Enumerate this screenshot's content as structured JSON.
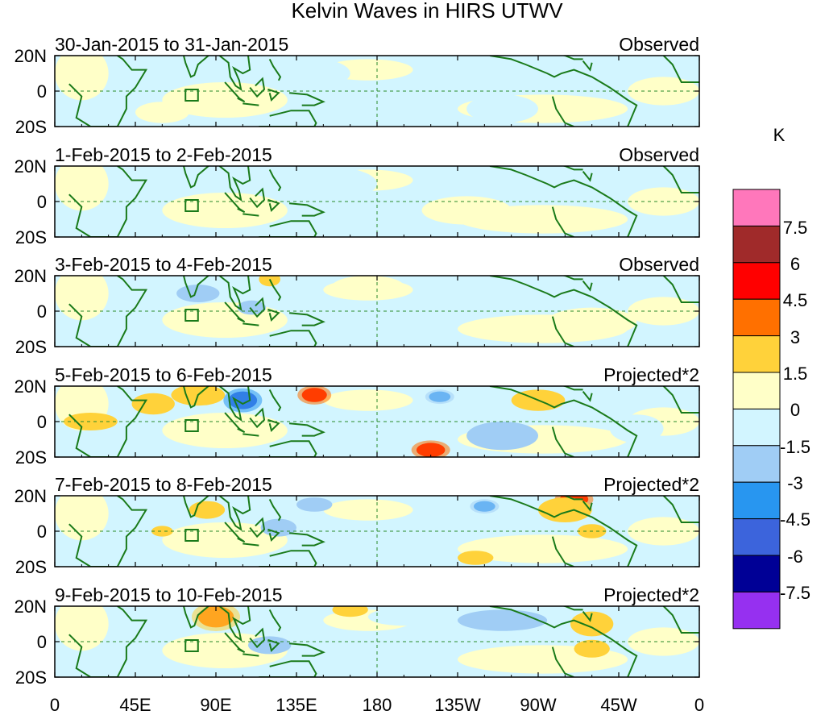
{
  "chart_data": {
    "type": "heatmap",
    "title": "Kelvin Waves in HIRS UTWV",
    "lat_ticks": [
      "20N",
      "0",
      "20S"
    ],
    "lon_ticks": [
      "0",
      "45E",
      "90E",
      "135E",
      "180",
      "135W",
      "90W",
      "45W",
      "0"
    ],
    "lon_values": [
      0,
      45,
      90,
      135,
      180,
      225,
      270,
      315,
      360
    ],
    "lat_range": [
      -20,
      20
    ],
    "lon_range": [
      0,
      360
    ],
    "colorbar": {
      "unit": "K",
      "labels": [
        "7.5",
        "6",
        "4.5",
        "3",
        "1.5",
        "0",
        "-1.5",
        "-3",
        "-4.5",
        "-6",
        "-7.5"
      ],
      "colors": [
        "#ff77bb",
        "#a02a2a",
        "#ff0000",
        "#ff7000",
        "#ffd23a",
        "#ffffc8",
        "#d2f5ff",
        "#a0cdf5",
        "#2896f0",
        "#3c64dc",
        "#000096",
        "#9630f0"
      ]
    },
    "panels": [
      {
        "date": "30-Jan-2015 to 31-Jan-2015",
        "label": "Observed",
        "blobs": [
          [
            140,
            10,
            25,
            9,
            -1.5
          ],
          [
            250,
            -10,
            20,
            8,
            -1.5
          ],
          [
            60,
            -12,
            15,
            6,
            0.5
          ]
        ]
      },
      {
        "date": "1-Feb-2015 to 2-Feb-2015",
        "label": "Observed",
        "blobs": [
          [
            150,
            10,
            30,
            10,
            -1.5
          ],
          [
            230,
            -5,
            25,
            8,
            0.5
          ],
          [
            100,
            -8,
            15,
            5,
            0.5
          ]
        ]
      },
      {
        "date": "3-Feb-2015 to 4-Feb-2015",
        "label": "Observed",
        "blobs": [
          [
            120,
            18,
            6,
            4,
            2.5
          ],
          [
            80,
            10,
            12,
            5,
            -2
          ],
          [
            110,
            2,
            8,
            4,
            -2
          ],
          [
            175,
            14,
            20,
            6,
            0.8
          ],
          [
            300,
            -6,
            25,
            8,
            0.5
          ]
        ]
      },
      {
        "date": "5-Feb-2015 to 6-Feb-2015",
        "label": "Projected*2",
        "blobs": [
          [
            145,
            15,
            7,
            4,
            5.5
          ],
          [
            105,
            12,
            8,
            5,
            -5
          ],
          [
            215,
            14,
            6,
            3,
            -4
          ],
          [
            210,
            -16,
            8,
            4,
            5
          ],
          [
            55,
            10,
            12,
            6,
            2
          ],
          [
            80,
            15,
            15,
            6,
            2.5
          ],
          [
            270,
            12,
            15,
            6,
            2
          ],
          [
            250,
            -8,
            20,
            8,
            -2
          ],
          [
            160,
            -5,
            20,
            6,
            -1.5
          ],
          [
            20,
            0,
            15,
            5,
            2
          ],
          [
            325,
            -4,
            15,
            8,
            -1.5
          ]
        ]
      },
      {
        "date": "7-Feb-2015 to 8-Feb-2015",
        "label": "Projected*2",
        "blobs": [
          [
            290,
            18,
            8,
            4,
            5.5
          ],
          [
            285,
            12,
            15,
            7,
            2.5
          ],
          [
            240,
            14,
            6,
            3,
            -4
          ],
          [
            85,
            12,
            10,
            5,
            2.5
          ],
          [
            60,
            0,
            6,
            3,
            2
          ],
          [
            300,
            0,
            8,
            4,
            2
          ],
          [
            125,
            2,
            10,
            5,
            -2
          ],
          [
            145,
            15,
            10,
            4,
            -2
          ],
          [
            235,
            -15,
            10,
            4,
            1.5
          ]
        ]
      },
      {
        "date": "9-Feb-2015 to 10-Feb-2015",
        "label": "Projected*2",
        "blobs": [
          [
            90,
            14,
            10,
            6,
            3
          ],
          [
            120,
            -2,
            12,
            5,
            -2
          ],
          [
            165,
            18,
            10,
            4,
            2
          ],
          [
            250,
            12,
            25,
            6,
            -2
          ],
          [
            300,
            10,
            12,
            7,
            2.5
          ],
          [
            300,
            -4,
            10,
            5,
            2
          ],
          [
            195,
            14,
            20,
            5,
            -1.5
          ]
        ]
      }
    ]
  }
}
